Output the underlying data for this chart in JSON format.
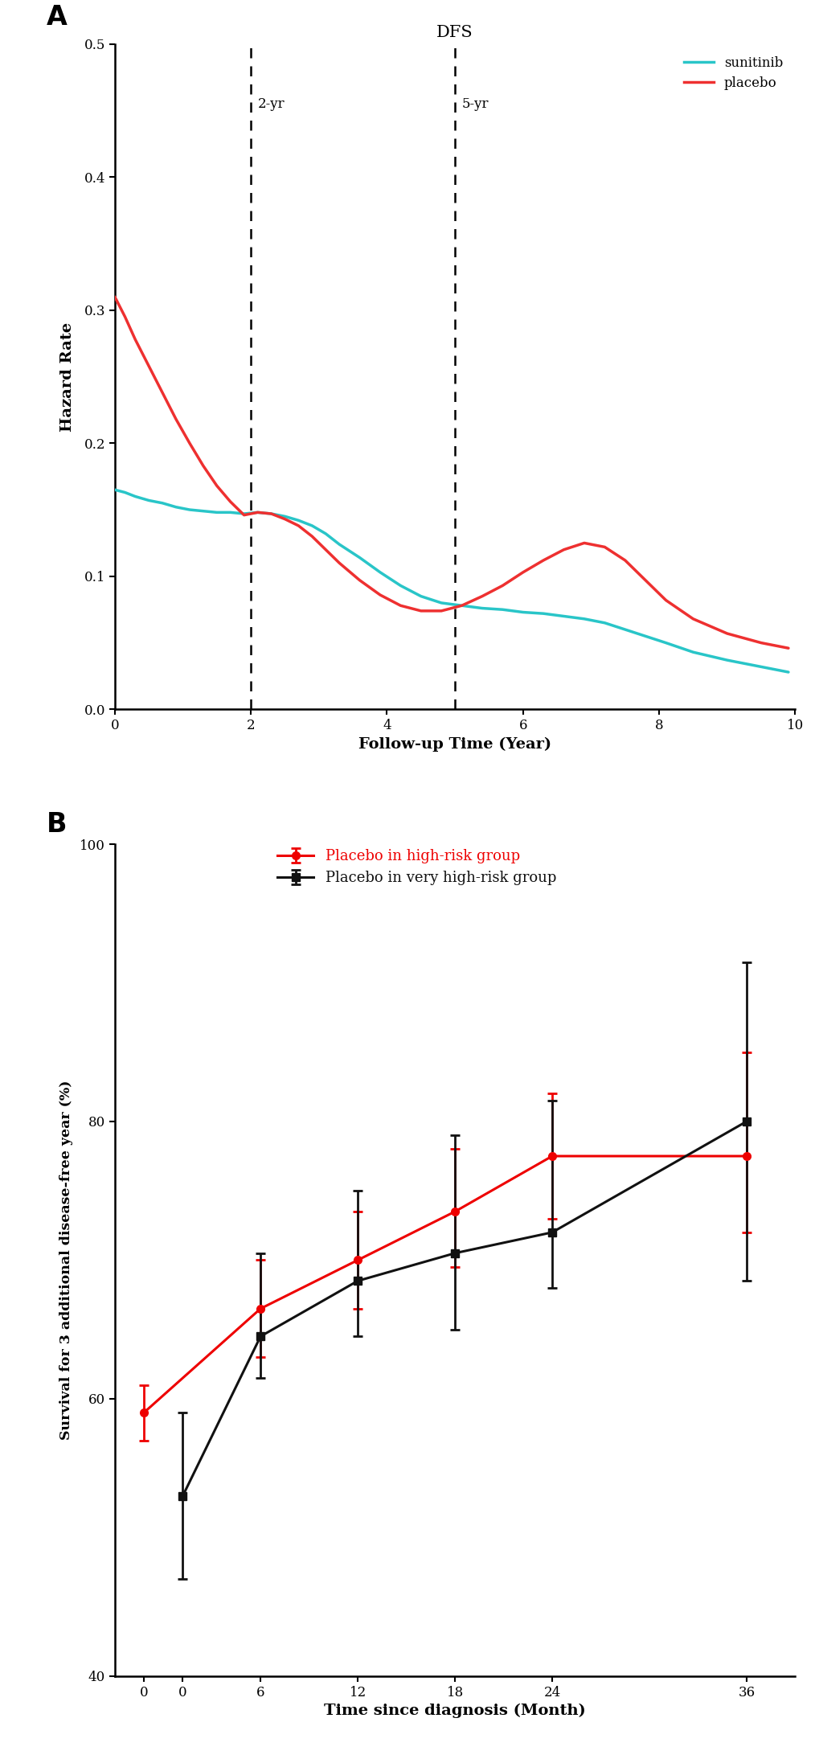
{
  "panel_A": {
    "title": "DFS",
    "xlabel": "Follow-up Time (Year)",
    "ylabel": "Hazard Rate",
    "xlim": [
      0,
      10
    ],
    "ylim": [
      0,
      0.5
    ],
    "yticks": [
      0.0,
      0.1,
      0.2,
      0.3,
      0.4,
      0.5
    ],
    "xticks": [
      0,
      2,
      4,
      6,
      8,
      10
    ],
    "vline1_x": 2,
    "vline1_label": "2-yr",
    "vline2_x": 5,
    "vline2_label": "5-yr",
    "sunitinib_color": "#29C5C8",
    "placebo_color": "#EE3030",
    "sunitinib_x": [
      0.0,
      0.15,
      0.3,
      0.5,
      0.7,
      0.9,
      1.1,
      1.3,
      1.5,
      1.7,
      1.9,
      2.1,
      2.3,
      2.5,
      2.7,
      2.9,
      3.1,
      3.3,
      3.6,
      3.9,
      4.2,
      4.5,
      4.8,
      5.1,
      5.4,
      5.7,
      6.0,
      6.3,
      6.6,
      6.9,
      7.2,
      7.5,
      7.8,
      8.1,
      8.5,
      9.0,
      9.5,
      9.9
    ],
    "sunitinib_y": [
      0.165,
      0.163,
      0.16,
      0.157,
      0.155,
      0.152,
      0.15,
      0.149,
      0.148,
      0.148,
      0.147,
      0.148,
      0.147,
      0.145,
      0.142,
      0.138,
      0.132,
      0.124,
      0.114,
      0.103,
      0.093,
      0.085,
      0.08,
      0.078,
      0.076,
      0.075,
      0.073,
      0.072,
      0.07,
      0.068,
      0.065,
      0.06,
      0.055,
      0.05,
      0.043,
      0.037,
      0.032,
      0.028
    ],
    "placebo_x": [
      0.0,
      0.15,
      0.3,
      0.5,
      0.7,
      0.9,
      1.1,
      1.3,
      1.5,
      1.7,
      1.9,
      2.1,
      2.3,
      2.5,
      2.7,
      2.9,
      3.1,
      3.3,
      3.6,
      3.9,
      4.2,
      4.5,
      4.8,
      5.1,
      5.4,
      5.7,
      6.0,
      6.3,
      6.6,
      6.9,
      7.2,
      7.5,
      7.8,
      8.1,
      8.5,
      9.0,
      9.5,
      9.9
    ],
    "placebo_y": [
      0.31,
      0.295,
      0.278,
      0.258,
      0.238,
      0.218,
      0.2,
      0.183,
      0.168,
      0.156,
      0.146,
      0.148,
      0.147,
      0.143,
      0.138,
      0.13,
      0.12,
      0.11,
      0.097,
      0.086,
      0.078,
      0.074,
      0.074,
      0.078,
      0.085,
      0.093,
      0.103,
      0.112,
      0.12,
      0.125,
      0.122,
      0.112,
      0.097,
      0.082,
      0.068,
      0.057,
      0.05,
      0.046
    ],
    "legend_sunitinib": "sunitinib",
    "legend_placebo": "placebo"
  },
  "panel_B": {
    "xlabel": "Time since diagnosis (Month)",
    "ylabel": "Survival for 3 additional disease-free year (%)",
    "xlim": [
      -3,
      39
    ],
    "ylim": [
      40,
      100
    ],
    "yticks": [
      40,
      60,
      80,
      100
    ],
    "xticks": [
      -1.2,
      1.2,
      6,
      12,
      18,
      24,
      36
    ],
    "xticklabels": [
      "0",
      "0",
      "6",
      "12",
      "18",
      "24",
      "36"
    ],
    "high_risk_color": "#EE0000",
    "very_high_risk_color": "#111111",
    "high_risk_x": [
      -1.2,
      6,
      12,
      18,
      24,
      36
    ],
    "high_risk_y": [
      59.0,
      66.5,
      70.0,
      73.5,
      77.5,
      77.5
    ],
    "high_risk_yerr_low": [
      2.0,
      3.5,
      3.5,
      4.0,
      4.5,
      5.5
    ],
    "high_risk_yerr_high": [
      2.0,
      3.5,
      3.5,
      4.5,
      4.5,
      7.5
    ],
    "very_high_risk_x": [
      1.2,
      6,
      12,
      18,
      24,
      36
    ],
    "very_high_risk_y": [
      53.0,
      64.5,
      68.5,
      70.5,
      72.0,
      80.0
    ],
    "very_high_risk_yerr_low": [
      6.0,
      3.0,
      4.0,
      5.5,
      4.0,
      11.5
    ],
    "very_high_risk_yerr_high": [
      6.0,
      6.0,
      6.5,
      8.5,
      9.5,
      11.5
    ],
    "legend_high_risk": "Placebo in high-risk group",
    "legend_very_high_risk": "Placebo in very high-risk group"
  }
}
